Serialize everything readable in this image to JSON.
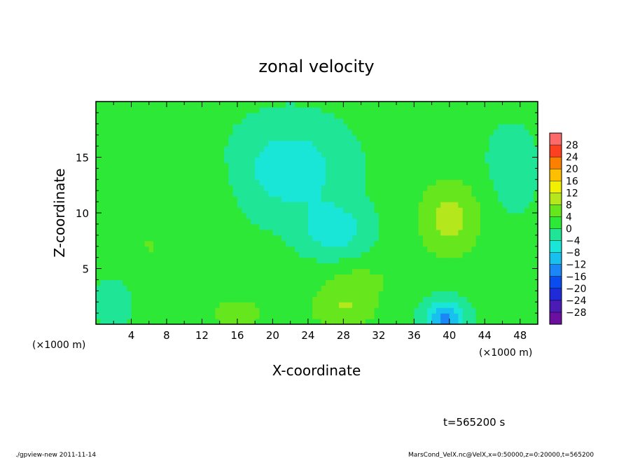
{
  "chart_data": {
    "type": "heatmap",
    "title": "zonal velocity",
    "xlabel": "X-coordinate",
    "ylabel": "Z-coordinate",
    "x_unit": "(×1000 m)",
    "y_unit": "(×1000 m)",
    "xlim": [
      0,
      50
    ],
    "ylim": [
      0,
      20
    ],
    "x_ticks": [
      4,
      8,
      12,
      16,
      20,
      24,
      28,
      32,
      36,
      40,
      44,
      48
    ],
    "y_ticks": [
      5,
      10,
      15
    ],
    "colorbar": {
      "labels": [
        28,
        24,
        20,
        16,
        12,
        8,
        4,
        0,
        -4,
        -8,
        -12,
        -16,
        -20,
        -24,
        -28
      ],
      "range": [
        -32,
        32
      ],
      "step": 4,
      "colors": [
        "#6a0fa0",
        "#4b1bb5",
        "#1f2ad8",
        "#0a4cf0",
        "#1b86f5",
        "#18c0f0",
        "#1ae6d8",
        "#1fe696",
        "#2ee838",
        "#66e61c",
        "#b4e81c",
        "#f0f000",
        "#fcc000",
        "#fc8000",
        "#fc4020",
        "#fc6a6a"
      ]
    },
    "field_anomalies": [
      {
        "x": 22,
        "z": 14,
        "value": -8,
        "sx": 6,
        "sz": 4
      },
      {
        "x": 27,
        "z": 8.5,
        "value": -8,
        "sx": 3.5,
        "sz": 2.2
      },
      {
        "x": 39.5,
        "z": 0.5,
        "value": -14,
        "sx": 2.2,
        "sz": 1.6
      },
      {
        "x": 40,
        "z": 9.5,
        "value": 9,
        "sx": 3.5,
        "sz": 3.5
      },
      {
        "x": 28,
        "z": 1.5,
        "value": 7,
        "sx": 4,
        "sz": 2
      },
      {
        "x": 16,
        "z": 1,
        "value": 6,
        "sx": 3,
        "sz": 1.5
      },
      {
        "x": 6,
        "z": 7,
        "value": 3,
        "sx": 4,
        "sz": 3
      },
      {
        "x": 47,
        "z": 14,
        "value": -3,
        "sx": 3,
        "sz": 4
      },
      {
        "x": 2,
        "z": 2,
        "value": -4,
        "sx": 2,
        "sz": 2
      },
      {
        "x": 12,
        "z": 12,
        "value": 2,
        "sx": 4,
        "sz": 4
      },
      {
        "x": 30,
        "z": 4,
        "value": 4,
        "sx": 4,
        "sz": 1.5
      }
    ],
    "time_label": "t=565200 s"
  },
  "footer": {
    "left": "./gpview-new  2011-11-14",
    "right": "MarsCond_VelX.nc@VelX,x=0:50000,z=0:20000,t=565200"
  }
}
